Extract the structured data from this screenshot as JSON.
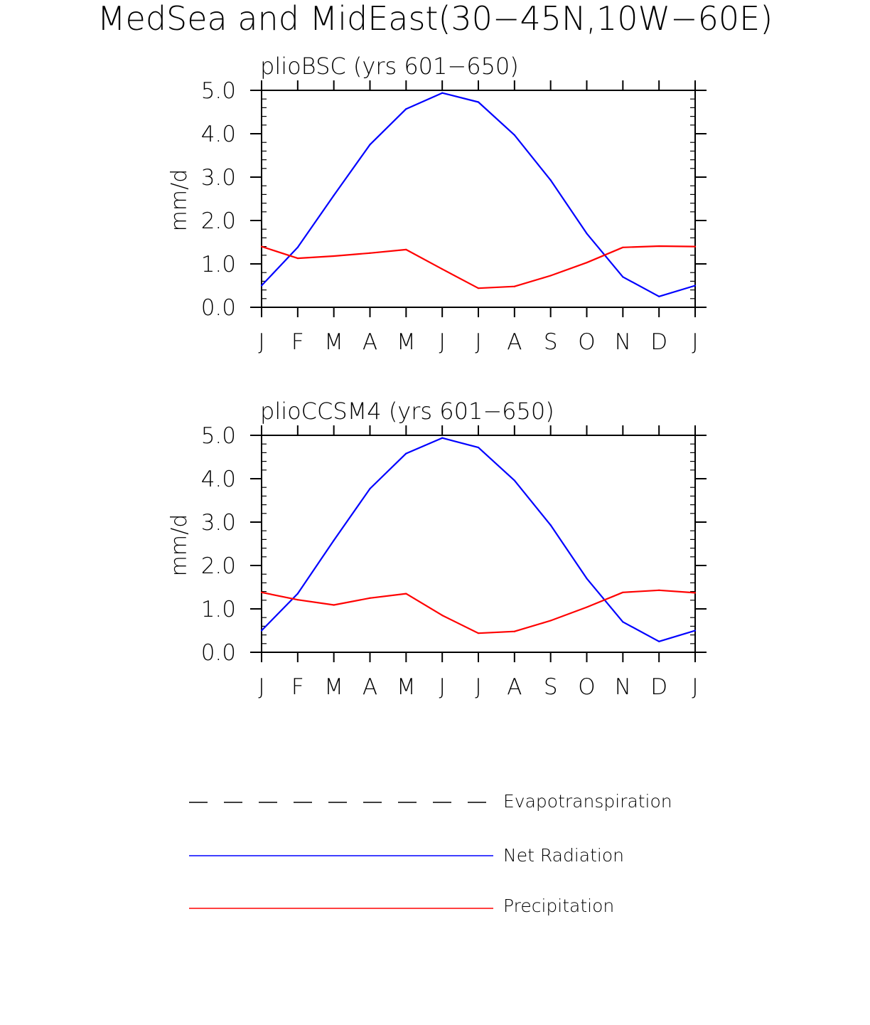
{
  "title": "MedSea and MidEast(30−45N,10W−60E)",
  "colors": {
    "net_radiation": "#0000ff",
    "precipitation": "#ff0000",
    "evapotranspiration": "#000000",
    "axes": "#000000"
  },
  "legend": {
    "items": [
      {
        "label": "Evapotranspiration",
        "style": "dashed"
      },
      {
        "label": "Net Radiation",
        "style": "solid-blue"
      },
      {
        "label": "Precipitation",
        "style": "solid-red"
      }
    ]
  },
  "chart_data": [
    {
      "type": "line",
      "title": "plioBSC (yrs 601−650)",
      "xlabel": "",
      "ylabel": "mm/d",
      "categories": [
        "J",
        "F",
        "M",
        "A",
        "M",
        "J",
        "J",
        "A",
        "S",
        "O",
        "N",
        "D",
        "J"
      ],
      "ylim": [
        0,
        5
      ],
      "yticks": [
        "0.0",
        "1.0",
        "2.0",
        "3.0",
        "4.0",
        "5.0"
      ],
      "series": [
        {
          "name": "Net Radiation",
          "values": [
            0.5,
            1.38,
            2.58,
            3.75,
            4.57,
            4.94,
            4.73,
            3.97,
            2.93,
            1.7,
            0.7,
            0.25,
            0.5
          ]
        },
        {
          "name": "Precipitation",
          "values": [
            1.4,
            1.13,
            1.18,
            1.25,
            1.33,
            0.88,
            0.44,
            0.48,
            0.73,
            1.03,
            1.38,
            1.41,
            1.4
          ]
        }
      ]
    },
    {
      "type": "line",
      "title": "plioCCSM4 (yrs 601−650)",
      "xlabel": "",
      "ylabel": "mm/d",
      "categories": [
        "J",
        "F",
        "M",
        "A",
        "M",
        "J",
        "J",
        "A",
        "S",
        "O",
        "N",
        "D",
        "J"
      ],
      "ylim": [
        0,
        5
      ],
      "yticks": [
        "0.0",
        "1.0",
        "2.0",
        "3.0",
        "4.0",
        "5.0"
      ],
      "series": [
        {
          "name": "Net Radiation",
          "values": [
            0.5,
            1.35,
            2.58,
            3.77,
            4.58,
            4.94,
            4.72,
            3.96,
            2.93,
            1.7,
            0.7,
            0.25,
            0.5
          ]
        },
        {
          "name": "Precipitation",
          "values": [
            1.38,
            1.21,
            1.09,
            1.25,
            1.35,
            0.85,
            0.44,
            0.48,
            0.73,
            1.04,
            1.38,
            1.43,
            1.37
          ]
        }
      ]
    }
  ]
}
